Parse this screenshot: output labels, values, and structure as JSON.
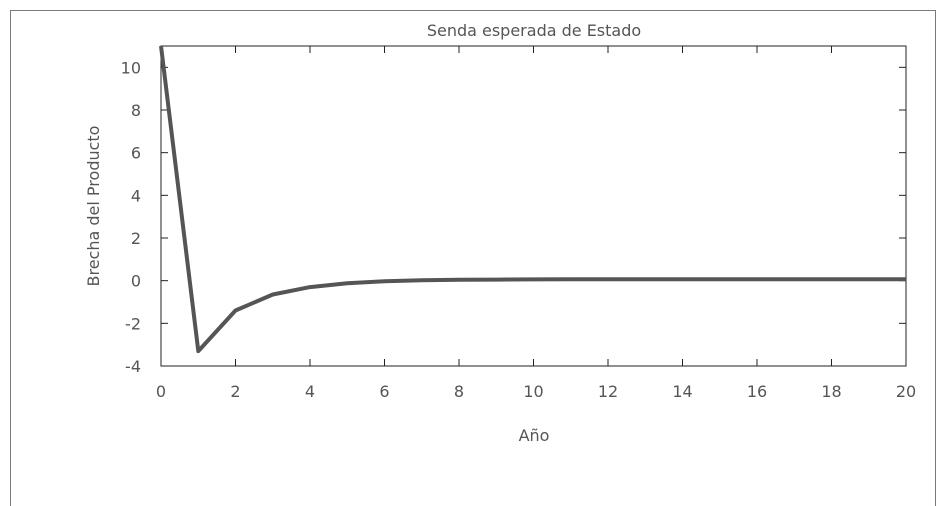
{
  "chart_data": {
    "type": "line",
    "title": "Senda esperada de Estado",
    "xlabel": "Año",
    "ylabel": "Brecha del Producto",
    "xlim": [
      0,
      20
    ],
    "ylim": [
      -4,
      11
    ],
    "xticks": [
      0,
      2,
      4,
      6,
      8,
      10,
      12,
      14,
      16,
      18,
      20
    ],
    "yticks": [
      -4,
      -2,
      0,
      2,
      4,
      6,
      8,
      10
    ],
    "grid": false,
    "series": [
      {
        "color": "#555555",
        "x": [
          0,
          1,
          2,
          3,
          4,
          5,
          6,
          7,
          8,
          9,
          10,
          11,
          12,
          13,
          14,
          15,
          16,
          17,
          18,
          19,
          20
        ],
        "y": [
          11.2,
          -3.3,
          -1.4,
          -0.65,
          -0.3,
          -0.12,
          -0.03,
          0.02,
          0.04,
          0.05,
          0.06,
          0.07,
          0.07,
          0.07,
          0.07,
          0.07,
          0.07,
          0.07,
          0.07,
          0.07,
          0.07
        ]
      }
    ]
  }
}
